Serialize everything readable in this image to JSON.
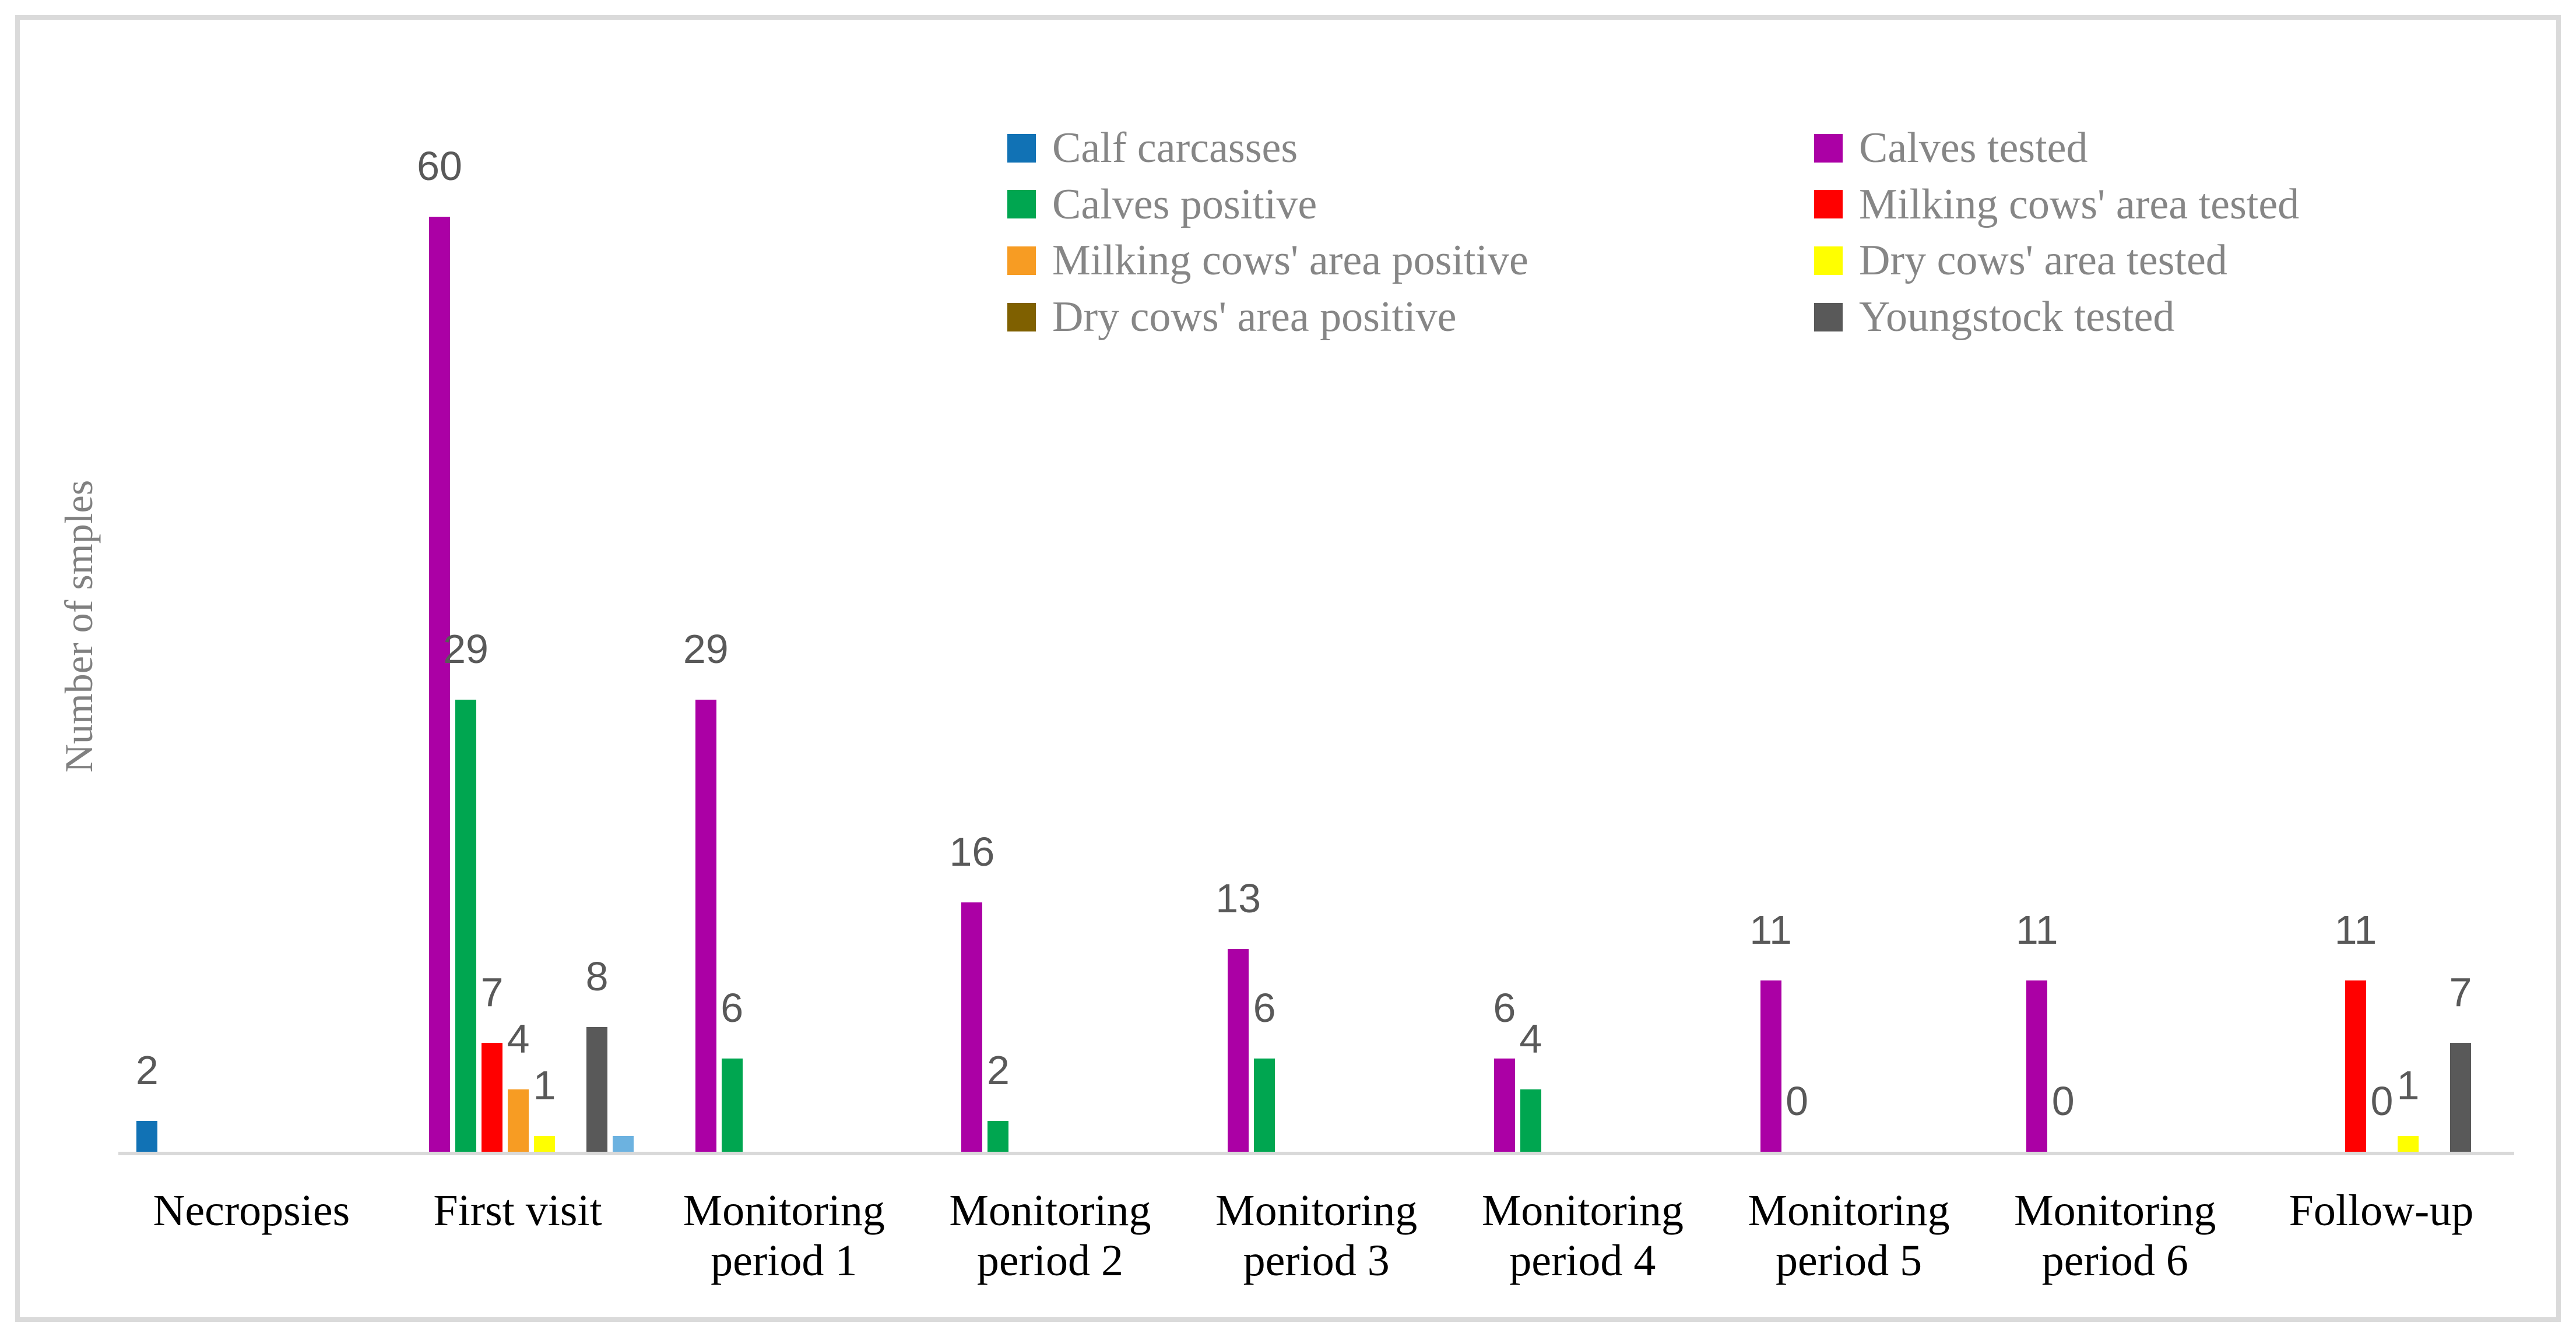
{
  "chart_data": {
    "type": "bar",
    "title": "",
    "xlabel": "",
    "ylabel": "Number of smples",
    "ylim": [
      0,
      74
    ],
    "gridlines": false,
    "y_axis_ticks_visible": false,
    "categories": [
      "Necropsies",
      "First visit",
      "Monitoring period 1",
      "Monitoring period 2",
      "Monitoring period 3",
      "Monitoring period 4",
      "Monitoring period 5",
      "Monitoring period 6",
      "Follow-up"
    ],
    "legend": {
      "position": "top-center",
      "columns": 2,
      "entries": [
        "Calf carcasses",
        "Calves tested",
        "Calves positive",
        "Milking cows' area tested",
        "Milking cows' area positive",
        "Dry cows' area tested",
        "Dry cows' area positive",
        "Youngstock tested"
      ]
    },
    "series": [
      {
        "name": "Calf carcasses",
        "color": "#1172B5",
        "in_legend": true,
        "values": [
          2,
          0,
          0,
          0,
          0,
          0,
          0,
          0,
          0
        ],
        "labels": [
          "2",
          "",
          "",
          "",
          "",
          "",
          "",
          "",
          ""
        ]
      },
      {
        "name": "Calves tested",
        "color": "#AB00A5",
        "in_legend": true,
        "values": [
          0,
          60,
          29,
          16,
          13,
          6,
          11,
          11,
          0
        ],
        "labels": [
          "",
          "60",
          "29",
          "16",
          "13",
          "6",
          "11",
          "11",
          ""
        ]
      },
      {
        "name": "Calves positive",
        "color": "#00A650",
        "in_legend": true,
        "values": [
          0,
          29,
          6,
          2,
          6,
          4,
          0,
          0,
          0
        ],
        "labels": [
          "",
          "29",
          "6",
          "2",
          "6",
          "4",
          "0",
          "0",
          ""
        ]
      },
      {
        "name": "Milking cows' area tested",
        "color": "#FF0000",
        "in_legend": true,
        "values": [
          0,
          7,
          0,
          0,
          0,
          0,
          0,
          0,
          11
        ],
        "labels": [
          "",
          "7",
          "",
          "",
          "",
          "",
          "",
          "",
          "11"
        ]
      },
      {
        "name": "Milking cows' area positive",
        "color": "#F79C23",
        "in_legend": true,
        "values": [
          0,
          4,
          0,
          0,
          0,
          0,
          0,
          0,
          0
        ],
        "labels": [
          "",
          "4",
          "",
          "",
          "",
          "",
          "",
          "",
          "0"
        ]
      },
      {
        "name": "Dry cows' area tested",
        "color": "#FFFF00",
        "in_legend": true,
        "values": [
          0,
          1,
          0,
          0,
          0,
          0,
          0,
          0,
          1
        ],
        "labels": [
          "",
          "1",
          "",
          "",
          "",
          "",
          "",
          "",
          "1"
        ]
      },
      {
        "name": "Dry cows' area positive",
        "color": "#7F6000",
        "in_legend": true,
        "values": [
          0,
          0,
          0,
          0,
          0,
          0,
          0,
          0,
          0
        ],
        "labels": [
          "",
          "",
          "",
          "",
          "",
          "",
          "",
          "",
          ""
        ]
      },
      {
        "name": "Youngstock tested",
        "color": "#595959",
        "in_legend": true,
        "values": [
          0,
          8,
          0,
          0,
          0,
          0,
          0,
          0,
          7
        ],
        "labels": [
          "",
          "8",
          "",
          "",
          "",
          "",
          "",
          "",
          "7"
        ]
      },
      {
        "name": "",
        "color": "#6CB2E0",
        "in_legend": false,
        "values": [
          0,
          1,
          0,
          0,
          0,
          0,
          0,
          0,
          0
        ],
        "labels": [
          "",
          "",
          "",
          "",
          "",
          "",
          "",
          "",
          ""
        ]
      }
    ],
    "colors": {
      "axis_line": "#D9D9D9",
      "frame_border": "#DADADA",
      "data_label_text": "#595959",
      "legend_text": "#868686",
      "axis_label_text": "#808080",
      "category_text": "#000000"
    }
  }
}
